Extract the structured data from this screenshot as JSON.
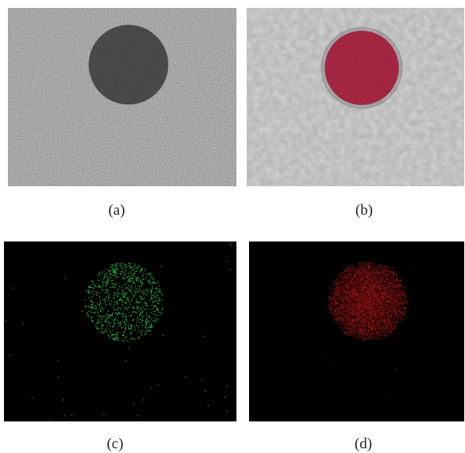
{
  "panels": [
    {
      "id": "a",
      "caption": "(a)",
      "description_type": "noisy-grayscale-disk"
    },
    {
      "id": "b",
      "caption": "(b)",
      "description_type": "smoothed-grayscale-red-disk"
    },
    {
      "id": "c",
      "caption": "(c)",
      "description_type": "green-point-cloud"
    },
    {
      "id": "d",
      "caption": "(d)",
      "description_type": "red-point-cloud"
    }
  ],
  "colors": {
    "background": "#ffffff",
    "panel_dark": "#000000",
    "gray_noise": "#8a8a8a",
    "disk_dark": "#2a2a2a",
    "disk_red": "#8b1a1a",
    "points_green": "#2fbf4a",
    "points_red": "#b01818"
  }
}
